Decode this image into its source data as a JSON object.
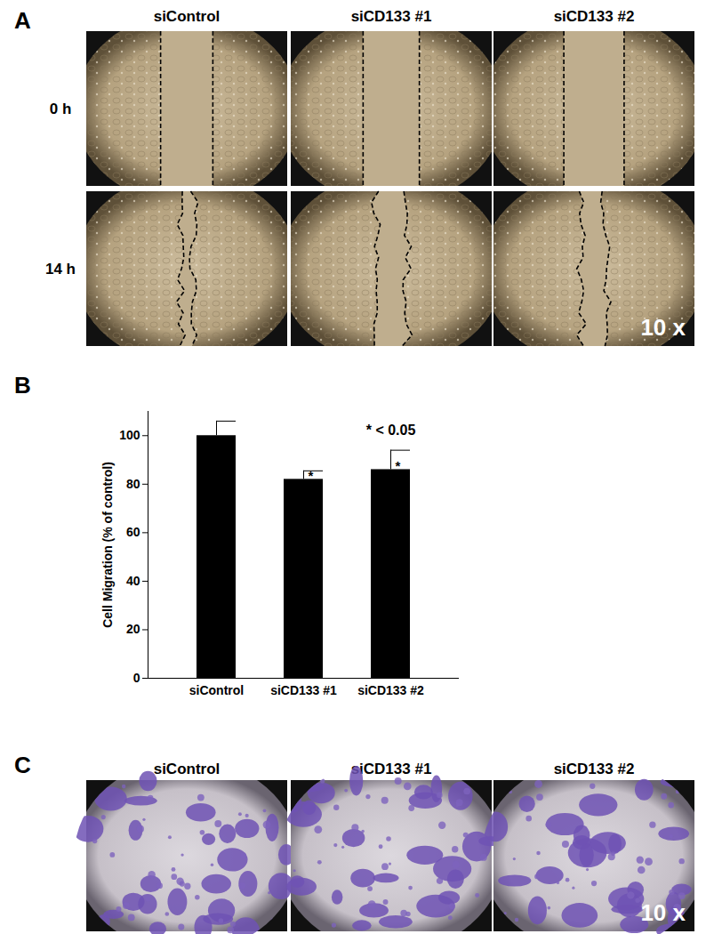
{
  "figure": {
    "panel_a": {
      "label": "A",
      "columns": [
        "siControl",
        "siCD133 #1",
        "siCD133 #2"
      ],
      "rows": [
        "0 h",
        "14 h"
      ],
      "magnification": "10 x"
    },
    "panel_b": {
      "label": "B"
    },
    "panel_c": {
      "label": "C",
      "columns": [
        "siControl",
        "siCD133 #1",
        "siCD133 #2"
      ],
      "magnification": "10 x"
    }
  },
  "chart_data": {
    "type": "bar",
    "categories": [
      "siControl",
      "siCD133 #1",
      "siCD133 #2"
    ],
    "values": [
      100,
      82,
      86
    ],
    "errors": [
      6,
      3.5,
      8
    ],
    "significance": [
      null,
      "*",
      "*"
    ],
    "annotation": "* < 0.05",
    "ylabel": "Cell Migration (% of control)",
    "color": "#000000",
    "ylim": [
      0,
      110
    ],
    "yticks": [
      0,
      20,
      40,
      60,
      80,
      100
    ]
  }
}
